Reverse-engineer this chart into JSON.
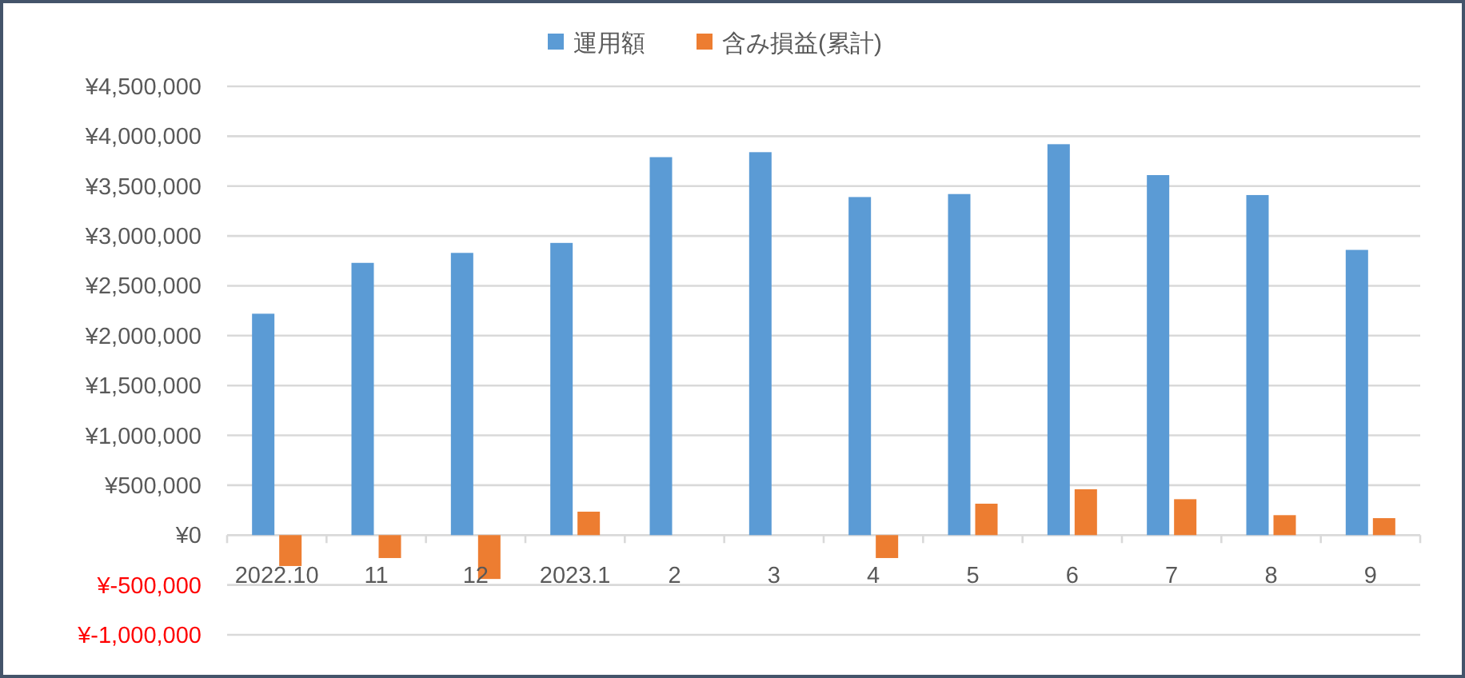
{
  "chart_data": {
    "type": "bar",
    "categories": [
      "2022.10",
      "11",
      "12",
      "2023.1",
      "2",
      "3",
      "4",
      "5",
      "6",
      "7",
      "8",
      "9"
    ],
    "series": [
      {
        "name": "運用額",
        "color": "#5b9bd5",
        "values": [
          2220000,
          2730000,
          2830000,
          2930000,
          3790000,
          3840000,
          3390000,
          3420000,
          3920000,
          3610000,
          3410000,
          2860000
        ]
      },
      {
        "name": "含み損益(累計)",
        "color": "#ed7d31",
        "values": [
          -310000,
          -230000,
          -440000,
          235000,
          0,
          0,
          -230000,
          315000,
          460000,
          360000,
          200000,
          170000
        ]
      }
    ],
    "ylim": [
      -1000000,
      4500000
    ],
    "yticks": [
      {
        "value": -1000000,
        "label": "¥-1,000,000"
      },
      {
        "value": -500000,
        "label": "¥-500,000"
      },
      {
        "value": 0,
        "label": "¥0"
      },
      {
        "value": 500000,
        "label": "¥500,000"
      },
      {
        "value": 1000000,
        "label": "¥1,000,000"
      },
      {
        "value": 1500000,
        "label": "¥1,500,000"
      },
      {
        "value": 2000000,
        "label": "¥2,000,000"
      },
      {
        "value": 2500000,
        "label": "¥2,500,000"
      },
      {
        "value": 3000000,
        "label": "¥3,000,000"
      },
      {
        "value": 3500000,
        "label": "¥3,500,000"
      },
      {
        "value": 4000000,
        "label": "¥4,000,000"
      },
      {
        "value": 4500000,
        "label": "¥4,500,000"
      }
    ],
    "grid": "y",
    "legend": "top"
  }
}
